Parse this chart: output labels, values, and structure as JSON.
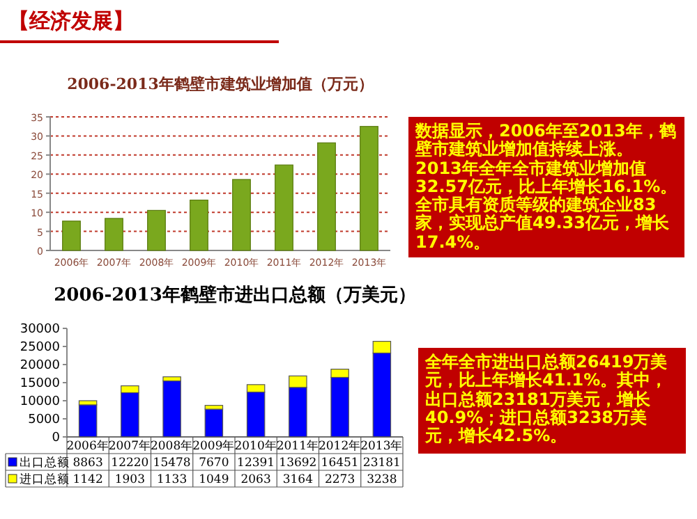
{
  "chart_data": [
    {
      "type": "other",
      "title": "【经济发展】"
    },
    {
      "type": "bar",
      "title": "2006-2013年鹤壁市建筑业增加值（万元）",
      "categories": [
        "2006年",
        "2007年",
        "2008年",
        "2009年",
        "2010年",
        "2011年",
        "2012年",
        "2013年"
      ],
      "values": [
        7.7,
        8.4,
        10.5,
        13.2,
        18.6,
        22.4,
        28.2,
        32.5
      ],
      "color": "#7aa81e",
      "ylim": [
        0,
        35
      ],
      "yticks": [
        0,
        5,
        10,
        15,
        20,
        25,
        30,
        35
      ],
      "grid": "y"
    },
    {
      "type": "other",
      "annotations": [
        "数据显示，2006年至2013年，鹤壁市建筑业增加值持续上涨。2013年全年全市建筑业增加值32.57亿元，比上年增长16.1%。全市具有资质等级的建筑企业83家，实现总产值49.33亿元，增长17.4%。"
      ]
    },
    {
      "type": "bar",
      "title": "2006-2013年鹤壁市进出口总额（万美元）",
      "categories": [
        "2006年",
        "2007年",
        "2008年",
        "2009年",
        "2010年",
        "2011年",
        "2012年",
        "2013年"
      ],
      "stacked": true,
      "data_labels": true,
      "legend": "bottom",
      "ylim": [
        0,
        30000
      ],
      "yticks": [
        0,
        5000,
        10000,
        15000,
        20000,
        25000,
        30000
      ],
      "series": [
        {
          "name": "出口总额",
          "color": "#0000ff",
          "values": [
            8863,
            12220,
            15478,
            7670,
            12391,
            13692,
            16451,
            23181
          ]
        },
        {
          "name": "进口总额",
          "color": "#ffff00",
          "values": [
            1142,
            1903,
            1133,
            1049,
            2063,
            3164,
            2273,
            3238
          ]
        }
      ]
    },
    {
      "type": "other",
      "annotations": [
        "全年全市进出口总额26419万美元，比上年增长41.1%。其中，出口总额23181万美元，增长40.9%；进口总额3238万美元，增长42.5%。"
      ]
    }
  ]
}
